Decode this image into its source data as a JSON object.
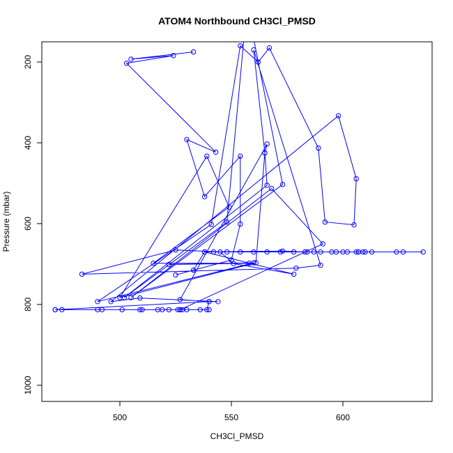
{
  "chart_data": {
    "type": "line",
    "title": "ATOM4 Northbound CH3Cl_PMSD",
    "xlabel": "CH3Cl_PMSD",
    "ylabel": "Pressure (mbar)",
    "xlim": [
      465,
      640
    ],
    "ylim": [
      1040,
      150
    ],
    "y_reversed": true,
    "grid": false,
    "x_ticks": [
      500,
      550,
      600
    ],
    "y_ticks": [
      200,
      400,
      600,
      800,
      1000
    ],
    "series": [
      {
        "color": "#0000ff",
        "points": [
          [
            533,
            175
          ],
          [
            505,
            193
          ],
          [
            524,
            184
          ],
          [
            503,
            203
          ],
          [
            543,
            423
          ],
          [
            530,
            392
          ],
          [
            538,
            533
          ],
          [
            554,
            433
          ],
          [
            554,
            601
          ],
          [
            550,
            690
          ],
          [
            525,
            727
          ],
          [
            533,
            715
          ],
          [
            538,
            670
          ],
          [
            573,
            668
          ],
          [
            583,
            670
          ],
          [
            587,
            670
          ],
          [
            597,
            670
          ],
          [
            602,
            670
          ],
          [
            607,
            670
          ],
          [
            609,
            670
          ],
          [
            610,
            670
          ],
          [
            607,
            670
          ],
          [
            624,
            670
          ],
          [
            627,
            670
          ],
          [
            636,
            670
          ],
          [
            613,
            670
          ],
          [
            606,
            670
          ],
          [
            600,
            670
          ],
          [
            595,
            670
          ],
          [
            590,
            670
          ],
          [
            584,
            670
          ],
          [
            578,
            670
          ],
          [
            572,
            670
          ],
          [
            566,
            670
          ],
          [
            560,
            670
          ],
          [
            554,
            670
          ],
          [
            548,
            670
          ],
          [
            542,
            670
          ],
          [
            538,
            670
          ],
          [
            578,
            725
          ],
          [
            551,
            699
          ],
          [
            545,
            670
          ],
          [
            525,
            665
          ],
          [
            483,
            725
          ],
          [
            579,
            710
          ],
          [
            590,
            703
          ],
          [
            560,
            170
          ],
          [
            565,
            425
          ],
          [
            561,
            697
          ],
          [
            500,
            783
          ],
          [
            539,
            433
          ],
          [
            549,
            559
          ],
          [
            515,
            698
          ],
          [
            558,
            698
          ],
          [
            522,
            701
          ],
          [
            560,
            697
          ],
          [
            490,
            793
          ],
          [
            541,
            602
          ],
          [
            554,
            160
          ],
          [
            562,
            200
          ],
          [
            567,
            165
          ],
          [
            589,
            413
          ],
          [
            592,
            596
          ],
          [
            605,
            603
          ],
          [
            606,
            489
          ],
          [
            598,
            333
          ],
          [
            496,
            793
          ],
          [
            509,
            784
          ],
          [
            544,
            793
          ],
          [
            540,
            793
          ],
          [
            527,
            788
          ],
          [
            566,
            403
          ],
          [
            565,
            425
          ],
          [
            566,
            505
          ],
          [
            502,
            783
          ],
          [
            548,
            596
          ],
          [
            557,
            60
          ],
          [
            573,
            503
          ],
          [
            505,
            783
          ],
          [
            568,
            513
          ],
          [
            591,
            650
          ],
          [
            527,
            813
          ],
          [
            539,
            813
          ],
          [
            540,
            793
          ],
          [
            471,
            813
          ],
          [
            509,
            813
          ],
          [
            501,
            813
          ],
          [
            490,
            813
          ],
          [
            522,
            813
          ],
          [
            517,
            813
          ],
          [
            526,
            813
          ],
          [
            527,
            813
          ],
          [
            492,
            813
          ],
          [
            471,
            813
          ],
          [
            536,
            813
          ],
          [
            528,
            813
          ],
          [
            519,
            813
          ],
          [
            510,
            813
          ],
          [
            474,
            813
          ],
          [
            540,
            813
          ],
          [
            530,
            813
          ]
        ]
      }
    ]
  }
}
